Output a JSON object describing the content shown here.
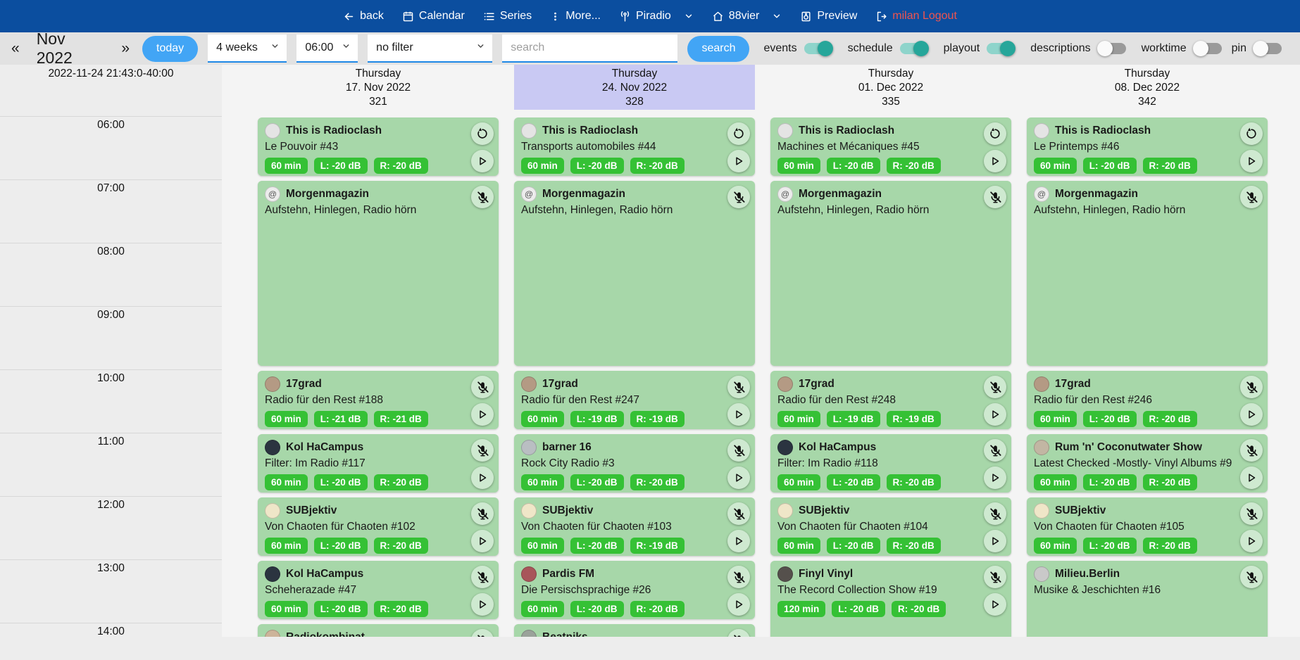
{
  "navbar": {
    "back": "back",
    "calendar": "Calendar",
    "series": "Series",
    "more": "More...",
    "station": "Piradio",
    "studio": "88vier",
    "preview": "Preview",
    "user_logout": "milan Logout"
  },
  "toolbar": {
    "prev": "«",
    "month": "Nov 2022",
    "next": "»",
    "today_button": "today",
    "range_select": "4 weeks",
    "time_select": "06:00",
    "filter_select": "no filter",
    "search_placeholder": "search",
    "search_button": "search",
    "toggles": [
      {
        "label": "events",
        "on": true
      },
      {
        "label": "schedule",
        "on": true
      },
      {
        "label": "playout",
        "on": true
      },
      {
        "label": "descriptions",
        "on": false
      },
      {
        "label": "worktime",
        "on": false
      }
    ],
    "pin_toggle": {
      "label": "pin",
      "on": false
    }
  },
  "colors": {
    "navbar_blue": "#0b4e9f",
    "accent_blue": "#42a5f5",
    "toggle_on_teal": "#26a69a",
    "card_green": "#a7d7a9",
    "badge_green": "#35c135",
    "highlight_lavender": "#c9c9f3",
    "logout_red": "#f0544f"
  },
  "calendar": {
    "timestamp_label": "2022-11-24 21:43:0-40:00",
    "hours": [
      "06:00",
      "07:00",
      "08:00",
      "09:00",
      "10:00",
      "11:00",
      "12:00",
      "13:00",
      "14:00"
    ],
    "days": [
      {
        "weekday": "Thursday",
        "date": "17. Nov 2022",
        "day_number": "321",
        "highlight": false,
        "events": [
          {
            "show": "This is Radioclash",
            "episode": "Le Pouvoir #43",
            "start_hour": 6,
            "duration_hours": 1,
            "badges": [
              "60 min",
              "L: -20 dB",
              "R: -20 dB"
            ],
            "icons": [
              "replay",
              "play"
            ],
            "avatar_color": "#e4e4e4"
          },
          {
            "show": "Morgenmagazin",
            "episode": "Aufstehn, Hinlegen, Radio hörn",
            "start_hour": 7,
            "duration_hours": 3,
            "badges": [],
            "icons": [
              "mic-off"
            ],
            "avatar_color": "#ececec",
            "avatar_glyph": "@"
          },
          {
            "show": "17grad",
            "episode": "Radio für den Rest #188",
            "start_hour": 10,
            "duration_hours": 1,
            "badges": [
              "60 min",
              "L: -21 dB",
              "R: -21 dB"
            ],
            "icons": [
              "mic-off",
              "play"
            ],
            "avatar_color": "#b49a84"
          },
          {
            "show": "Kol HaCampus",
            "episode": "Filter: Im Radio #117",
            "start_hour": 11,
            "duration_hours": 1,
            "badges": [
              "60 min",
              "L: -20 dB",
              "R: -20 dB"
            ],
            "icons": [
              "mic-off",
              "play"
            ],
            "avatar_color": "#2b3440"
          },
          {
            "show": "SUBjektiv",
            "episode": "Von Chaoten für Chaoten #102",
            "start_hour": 12,
            "duration_hours": 1,
            "badges": [
              "60 min",
              "L: -20 dB",
              "R: -20 dB"
            ],
            "icons": [
              "mic-off",
              "play"
            ],
            "avatar_color": "#efe6c8"
          },
          {
            "show": "Kol HaCampus",
            "episode": "Scheherazade #47",
            "start_hour": 13,
            "duration_hours": 1,
            "badges": [
              "60 min",
              "L: -20 dB",
              "R: -20 dB"
            ],
            "icons": [
              "mic-off",
              "play"
            ],
            "avatar_color": "#2b3440"
          },
          {
            "show": "Radiokombinat",
            "episode": "",
            "start_hour": 14,
            "duration_hours": 1,
            "badges": [],
            "icons": [
              "mic-off"
            ],
            "avatar_color": "#cdb49a"
          }
        ]
      },
      {
        "weekday": "Thursday",
        "date": "24. Nov 2022",
        "day_number": "328",
        "highlight": true,
        "events": [
          {
            "show": "This is Radioclash",
            "episode": "Transports automobiles #44",
            "start_hour": 6,
            "duration_hours": 1,
            "badges": [
              "60 min",
              "L: -20 dB",
              "R: -20 dB"
            ],
            "icons": [
              "replay",
              "play"
            ],
            "avatar_color": "#e4e4e4"
          },
          {
            "show": "Morgenmagazin",
            "episode": "Aufstehn, Hinlegen, Radio hörn",
            "start_hour": 7,
            "duration_hours": 3,
            "badges": [],
            "icons": [
              "mic-off"
            ],
            "avatar_color": "#ececec",
            "avatar_glyph": "@"
          },
          {
            "show": "17grad",
            "episode": "Radio für den Rest #247",
            "start_hour": 10,
            "duration_hours": 1,
            "badges": [
              "60 min",
              "L: -19 dB",
              "R: -19 dB"
            ],
            "icons": [
              "mic-off",
              "play"
            ],
            "avatar_color": "#b49a84"
          },
          {
            "show": "barner 16",
            "episode": "Rock City Radio #3",
            "start_hour": 11,
            "duration_hours": 1,
            "badges": [
              "60 min",
              "L: -20 dB",
              "R: -20 dB"
            ],
            "icons": [
              "mic-off",
              "play"
            ],
            "avatar_color": "#b9bec2"
          },
          {
            "show": "SUBjektiv",
            "episode": "Von Chaoten für Chaoten #103",
            "start_hour": 12,
            "duration_hours": 1,
            "badges": [
              "60 min",
              "L: -20 dB",
              "R: -19 dB"
            ],
            "icons": [
              "mic-off",
              "play"
            ],
            "avatar_color": "#efe6c8"
          },
          {
            "show": "Pardis FM",
            "episode": "Die Persischsprachige #26",
            "start_hour": 13,
            "duration_hours": 1,
            "badges": [
              "60 min",
              "L: -20 dB",
              "R: -20 dB"
            ],
            "icons": [
              "mic-off",
              "play"
            ],
            "avatar_color": "#a8555a"
          },
          {
            "show": "Beatniks",
            "episode": "",
            "start_hour": 14,
            "duration_hours": 1,
            "badges": [],
            "icons": [
              "mic-off"
            ],
            "avatar_color": "#9aa29a"
          }
        ]
      },
      {
        "weekday": "Thursday",
        "date": "01. Dec 2022",
        "day_number": "335",
        "highlight": false,
        "events": [
          {
            "show": "This is Radioclash",
            "episode": "Machines et Mécaniques #45",
            "start_hour": 6,
            "duration_hours": 1,
            "badges": [
              "60 min",
              "L: -20 dB",
              "R: -20 dB"
            ],
            "icons": [
              "replay",
              "play"
            ],
            "avatar_color": "#e4e4e4"
          },
          {
            "show": "Morgenmagazin",
            "episode": "Aufstehn, Hinlegen, Radio hörn",
            "start_hour": 7,
            "duration_hours": 3,
            "badges": [],
            "icons": [
              "mic-off"
            ],
            "avatar_color": "#ececec",
            "avatar_glyph": "@"
          },
          {
            "show": "17grad",
            "episode": "Radio für den Rest #248",
            "start_hour": 10,
            "duration_hours": 1,
            "badges": [
              "60 min",
              "L: -19 dB",
              "R: -19 dB"
            ],
            "icons": [
              "mic-off",
              "play"
            ],
            "avatar_color": "#b49a84"
          },
          {
            "show": "Kol HaCampus",
            "episode": "Filter: Im Radio #118",
            "start_hour": 11,
            "duration_hours": 1,
            "badges": [
              "60 min",
              "L: -20 dB",
              "R: -20 dB"
            ],
            "icons": [
              "mic-off",
              "play"
            ],
            "avatar_color": "#2b3440"
          },
          {
            "show": "SUBjektiv",
            "episode": "Von Chaoten für Chaoten #104",
            "start_hour": 12,
            "duration_hours": 1,
            "badges": [
              "60 min",
              "L: -20 dB",
              "R: -20 dB"
            ],
            "icons": [
              "mic-off",
              "play"
            ],
            "avatar_color": "#efe6c8"
          },
          {
            "show": "Finyl Vinyl",
            "episode": "The Record Collection Show #19",
            "start_hour": 13,
            "duration_hours": 2,
            "badges": [
              "120 min",
              "L: -20 dB",
              "R: -20 dB"
            ],
            "icons": [
              "mic-off",
              "play"
            ],
            "avatar_color": "#55504c"
          }
        ]
      },
      {
        "weekday": "Thursday",
        "date": "08. Dec 2022",
        "day_number": "342",
        "highlight": false,
        "events": [
          {
            "show": "This is Radioclash",
            "episode": "Le Printemps #46",
            "start_hour": 6,
            "duration_hours": 1,
            "badges": [
              "60 min",
              "L: -20 dB",
              "R: -20 dB"
            ],
            "icons": [
              "replay",
              "play"
            ],
            "avatar_color": "#e4e4e4"
          },
          {
            "show": "Morgenmagazin",
            "episode": "Aufstehn, Hinlegen, Radio hörn",
            "start_hour": 7,
            "duration_hours": 3,
            "badges": [],
            "icons": [
              "mic-off"
            ],
            "avatar_color": "#ececec",
            "avatar_glyph": "@"
          },
          {
            "show": "17grad",
            "episode": "Radio für den Rest #246",
            "start_hour": 10,
            "duration_hours": 1,
            "badges": [
              "60 min",
              "L: -20 dB",
              "R: -20 dB"
            ],
            "icons": [
              "mic-off",
              "play"
            ],
            "avatar_color": "#b49a84"
          },
          {
            "show": "Rum 'n' Coconutwater Show",
            "episode": "Latest Checked -Mostly- Vinyl Albums #9",
            "start_hour": 11,
            "duration_hours": 1,
            "badges": [
              "60 min",
              "L: -20 dB",
              "R: -20 dB"
            ],
            "icons": [
              "mic-off",
              "play"
            ],
            "avatar_color": "#c2b6a3"
          },
          {
            "show": "SUBjektiv",
            "episode": "Von Chaoten für Chaoten #105",
            "start_hour": 12,
            "duration_hours": 1,
            "badges": [
              "60 min",
              "L: -20 dB",
              "R: -20 dB"
            ],
            "icons": [
              "mic-off",
              "play"
            ],
            "avatar_color": "#efe6c8"
          },
          {
            "show": "Milieu.Berlin",
            "episode": "Musike & Jeschichten #16",
            "start_hour": 13,
            "duration_hours": 2,
            "badges": [],
            "icons": [
              "mic-off"
            ],
            "avatar_color": "#c9c9c9"
          }
        ]
      }
    ]
  }
}
